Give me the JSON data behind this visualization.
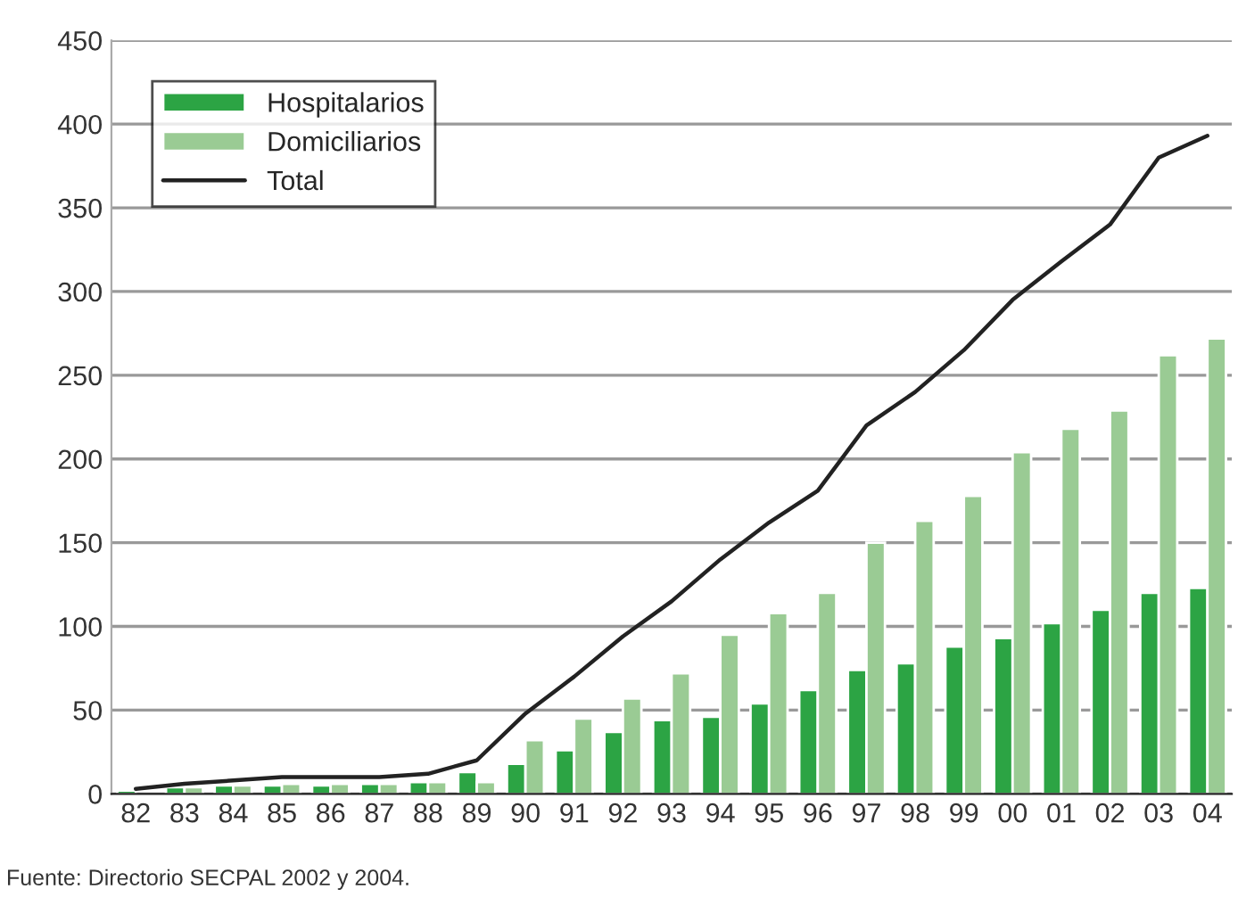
{
  "chart_data": {
    "type": "bar",
    "categories": [
      "82",
      "83",
      "84",
      "85",
      "86",
      "87",
      "88",
      "89",
      "90",
      "91",
      "92",
      "93",
      "94",
      "95",
      "96",
      "97",
      "98",
      "99",
      "00",
      "01",
      "02",
      "03",
      "04"
    ],
    "series": [
      {
        "name": "Hospitalarios",
        "color": "#2ca444",
        "values": [
          2,
          4,
          5,
          5,
          5,
          6,
          7,
          13,
          18,
          26,
          37,
          44,
          46,
          54,
          62,
          74,
          78,
          88,
          93,
          102,
          110,
          120,
          123
        ]
      },
      {
        "name": "Domiciliarios",
        "color": "#9acb94",
        "values": [
          null,
          4,
          5,
          6,
          6,
          6,
          7,
          7,
          32,
          45,
          57,
          72,
          95,
          108,
          120,
          150,
          163,
          178,
          204,
          218,
          229,
          262,
          272
        ]
      },
      {
        "name": "Total",
        "type": "line",
        "color": "#222222",
        "values": [
          3,
          6,
          8,
          10,
          10,
          10,
          12,
          20,
          48,
          70,
          94,
          115,
          140,
          162,
          181,
          220,
          240,
          265,
          295,
          318,
          340,
          380,
          393
        ]
      }
    ],
    "ylim": [
      0,
      450
    ],
    "yticks": [
      0,
      50,
      100,
      150,
      200,
      250,
      300,
      350,
      400,
      450
    ],
    "grid": "y",
    "legend": "top left",
    "marker": "none",
    "line_style": "solid",
    "annotations": [
      "Fuente: Directorio SECPAL 2002 y 2004."
    ]
  }
}
